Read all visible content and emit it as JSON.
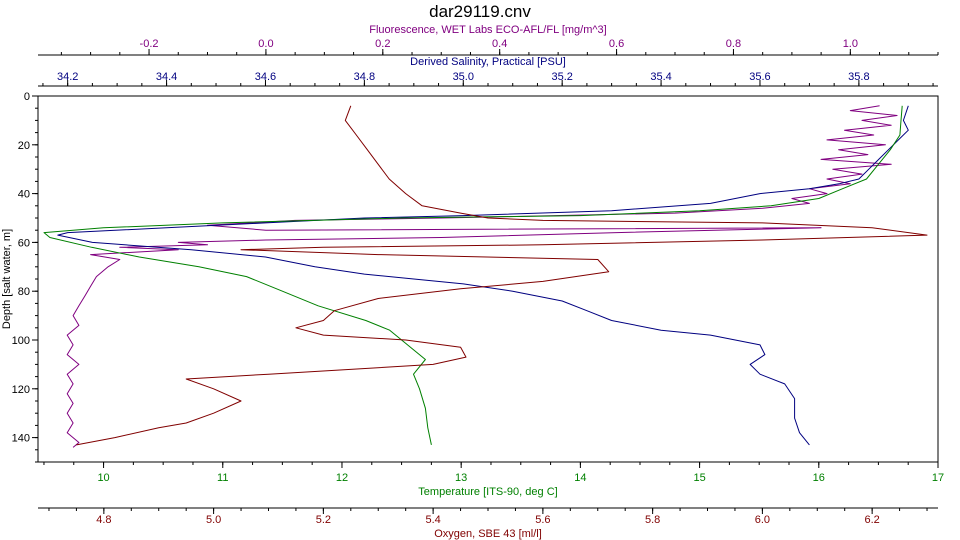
{
  "chart_data": {
    "type": "line",
    "title": "dar29119.cnv",
    "grid": false,
    "legend": "none",
    "y_axis": {
      "label": "Depth [salt water, m]",
      "range": [
        0,
        150
      ],
      "inverted": true,
      "ticks": [
        0,
        20,
        40,
        60,
        80,
        100,
        120,
        140
      ],
      "color": "#000000"
    },
    "x_axes": [
      {
        "id": "fluorescence",
        "label": "Fluorescence, WET Labs ECO-AFL/FL [mg/m^3]",
        "position": "top-outer",
        "range": [
          -0.39,
          1.15
        ],
        "ticks": [
          -0.2,
          0.0,
          0.2,
          0.4,
          0.6,
          0.8,
          1.0
        ],
        "tick_labels": [
          "-0.2",
          "0.0",
          "0.2",
          "0.4",
          "0.6",
          "0.8",
          "1.0"
        ],
        "color": "#800080"
      },
      {
        "id": "salinity",
        "label": "Derived Salinity, Practical [PSU]",
        "position": "top-inner",
        "range": [
          34.14,
          35.96
        ],
        "ticks": [
          34.2,
          34.4,
          34.6,
          34.8,
          35.0,
          35.2,
          35.4,
          35.6,
          35.8
        ],
        "tick_labels": [
          "34.2",
          "34.4",
          "34.6",
          "34.8",
          "35.0",
          "35.2",
          "35.4",
          "35.6",
          "35.8"
        ],
        "color": "#000080"
      },
      {
        "id": "temperature",
        "label": "Temperature [ITS-90, deg C]",
        "position": "bottom-inner",
        "range": [
          9.45,
          17.0
        ],
        "ticks": [
          10,
          11,
          12,
          13,
          14,
          15,
          16,
          17
        ],
        "tick_labels": [
          "10",
          "11",
          "12",
          "13",
          "14",
          "15",
          "16",
          "17"
        ],
        "color": "#008000"
      },
      {
        "id": "oxygen",
        "label": "Oxygen, SBE 43 [ml/l]",
        "position": "bottom-outer",
        "range": [
          4.68,
          6.32
        ],
        "ticks": [
          4.8,
          5.0,
          5.2,
          5.4,
          5.6,
          5.8,
          6.0,
          6.2
        ],
        "tick_labels": [
          "4.8",
          "5.0",
          "5.2",
          "5.4",
          "5.6",
          "5.8",
          "6.0",
          "6.2"
        ],
        "color": "#800000"
      }
    ],
    "series": [
      {
        "axis": "fluorescence",
        "color": "#800080",
        "points": [
          [
            1.05,
            4
          ],
          [
            1.0,
            6
          ],
          [
            1.08,
            8
          ],
          [
            1.02,
            10
          ],
          [
            1.07,
            12
          ],
          [
            0.99,
            14
          ],
          [
            1.04,
            16
          ],
          [
            0.96,
            18
          ],
          [
            1.06,
            20
          ],
          [
            0.98,
            22
          ],
          [
            1.03,
            24
          ],
          [
            0.95,
            26
          ],
          [
            1.07,
            28
          ],
          [
            0.97,
            30
          ],
          [
            1.02,
            32
          ],
          [
            0.96,
            34
          ],
          [
            1.0,
            36
          ],
          [
            0.93,
            38
          ],
          [
            0.96,
            40
          ],
          [
            0.9,
            42
          ],
          [
            0.93,
            44
          ],
          [
            0.85,
            46
          ],
          [
            0.7,
            48
          ],
          [
            0.3,
            50
          ],
          [
            0.05,
            51
          ],
          [
            -0.1,
            53
          ],
          [
            0.0,
            55
          ],
          [
            0.95,
            54
          ],
          [
            0.6,
            56
          ],
          [
            0.3,
            58
          ],
          [
            0.0,
            59
          ],
          [
            -0.15,
            60
          ],
          [
            -0.1,
            61
          ],
          [
            -0.25,
            62
          ],
          [
            -0.15,
            63
          ],
          [
            -0.3,
            65
          ],
          [
            -0.25,
            67
          ],
          [
            -0.27,
            70
          ],
          [
            -0.29,
            74
          ],
          [
            -0.3,
            78
          ],
          [
            -0.31,
            82
          ],
          [
            -0.32,
            86
          ],
          [
            -0.33,
            90
          ],
          [
            -0.32,
            94
          ],
          [
            -0.34,
            98
          ],
          [
            -0.33,
            102
          ],
          [
            -0.34,
            106
          ],
          [
            -0.32,
            110
          ],
          [
            -0.34,
            114
          ],
          [
            -0.33,
            118
          ],
          [
            -0.34,
            122
          ],
          [
            -0.33,
            126
          ],
          [
            -0.34,
            130
          ],
          [
            -0.33,
            134
          ],
          [
            -0.34,
            138
          ],
          [
            -0.32,
            142
          ],
          [
            -0.33,
            144
          ]
        ]
      },
      {
        "axis": "salinity",
        "color": "#000080",
        "points": [
          [
            35.9,
            4
          ],
          [
            35.89,
            10
          ],
          [
            35.9,
            14
          ],
          [
            35.88,
            18
          ],
          [
            35.86,
            22
          ],
          [
            35.84,
            26
          ],
          [
            35.82,
            30
          ],
          [
            35.8,
            34
          ],
          [
            35.76,
            36
          ],
          [
            35.7,
            38
          ],
          [
            35.6,
            40
          ],
          [
            35.5,
            44
          ],
          [
            35.3,
            47
          ],
          [
            35.0,
            49
          ],
          [
            34.8,
            50
          ],
          [
            34.6,
            52
          ],
          [
            34.4,
            54
          ],
          [
            34.2,
            56
          ],
          [
            34.18,
            57
          ],
          [
            34.25,
            60
          ],
          [
            34.45,
            63
          ],
          [
            34.6,
            66
          ],
          [
            34.7,
            70
          ],
          [
            34.8,
            73
          ],
          [
            34.9,
            75
          ],
          [
            35.0,
            77
          ],
          [
            35.1,
            80
          ],
          [
            35.2,
            84
          ],
          [
            35.25,
            88
          ],
          [
            35.3,
            92
          ],
          [
            35.4,
            96
          ],
          [
            35.5,
            98
          ],
          [
            35.6,
            102
          ],
          [
            35.61,
            106
          ],
          [
            35.58,
            110
          ],
          [
            35.6,
            114
          ],
          [
            35.65,
            118
          ],
          [
            35.67,
            124
          ],
          [
            35.67,
            132
          ],
          [
            35.68,
            138
          ],
          [
            35.7,
            143
          ]
        ]
      },
      {
        "axis": "temperature",
        "color": "#008000",
        "points": [
          [
            16.7,
            4
          ],
          [
            16.69,
            10
          ],
          [
            16.68,
            16
          ],
          [
            16.6,
            22
          ],
          [
            16.5,
            28
          ],
          [
            16.4,
            34
          ],
          [
            16.2,
            38
          ],
          [
            16.0,
            42
          ],
          [
            15.6,
            45
          ],
          [
            15.0,
            47
          ],
          [
            14.0,
            49
          ],
          [
            12.5,
            50
          ],
          [
            11.0,
            52
          ],
          [
            10.0,
            54
          ],
          [
            9.5,
            56
          ],
          [
            9.55,
            58
          ],
          [
            9.9,
            62
          ],
          [
            10.3,
            66
          ],
          [
            10.8,
            70
          ],
          [
            11.2,
            74
          ],
          [
            11.5,
            80
          ],
          [
            11.8,
            86
          ],
          [
            12.2,
            92
          ],
          [
            12.4,
            96
          ],
          [
            12.5,
            100
          ],
          [
            12.6,
            104
          ],
          [
            12.7,
            108
          ],
          [
            12.6,
            114
          ],
          [
            12.65,
            120
          ],
          [
            12.7,
            128
          ],
          [
            12.72,
            136
          ],
          [
            12.75,
            143
          ]
        ]
      },
      {
        "axis": "oxygen",
        "color": "#800000",
        "points": [
          [
            5.25,
            4
          ],
          [
            5.24,
            10
          ],
          [
            5.26,
            16
          ],
          [
            5.28,
            22
          ],
          [
            5.3,
            28
          ],
          [
            5.32,
            34
          ],
          [
            5.35,
            40
          ],
          [
            5.38,
            45
          ],
          [
            5.45,
            48
          ],
          [
            5.5,
            50
          ],
          [
            5.6,
            51
          ],
          [
            6.0,
            52
          ],
          [
            6.2,
            54
          ],
          [
            6.3,
            57
          ],
          [
            6.0,
            59
          ],
          [
            5.6,
            61
          ],
          [
            5.2,
            62
          ],
          [
            5.05,
            63
          ],
          [
            5.3,
            65
          ],
          [
            5.7,
            67
          ],
          [
            5.72,
            72
          ],
          [
            5.6,
            76
          ],
          [
            5.45,
            79
          ],
          [
            5.3,
            83
          ],
          [
            5.22,
            88
          ],
          [
            5.2,
            92
          ],
          [
            5.15,
            95
          ],
          [
            5.2,
            98
          ],
          [
            5.35,
            100
          ],
          [
            5.45,
            103
          ],
          [
            5.46,
            107
          ],
          [
            5.4,
            110
          ],
          [
            5.1,
            114
          ],
          [
            4.95,
            116
          ],
          [
            5.0,
            120
          ],
          [
            5.05,
            125
          ],
          [
            5.0,
            130
          ],
          [
            4.95,
            134
          ],
          [
            4.9,
            136
          ],
          [
            4.82,
            140
          ],
          [
            4.75,
            143
          ]
        ]
      }
    ]
  }
}
